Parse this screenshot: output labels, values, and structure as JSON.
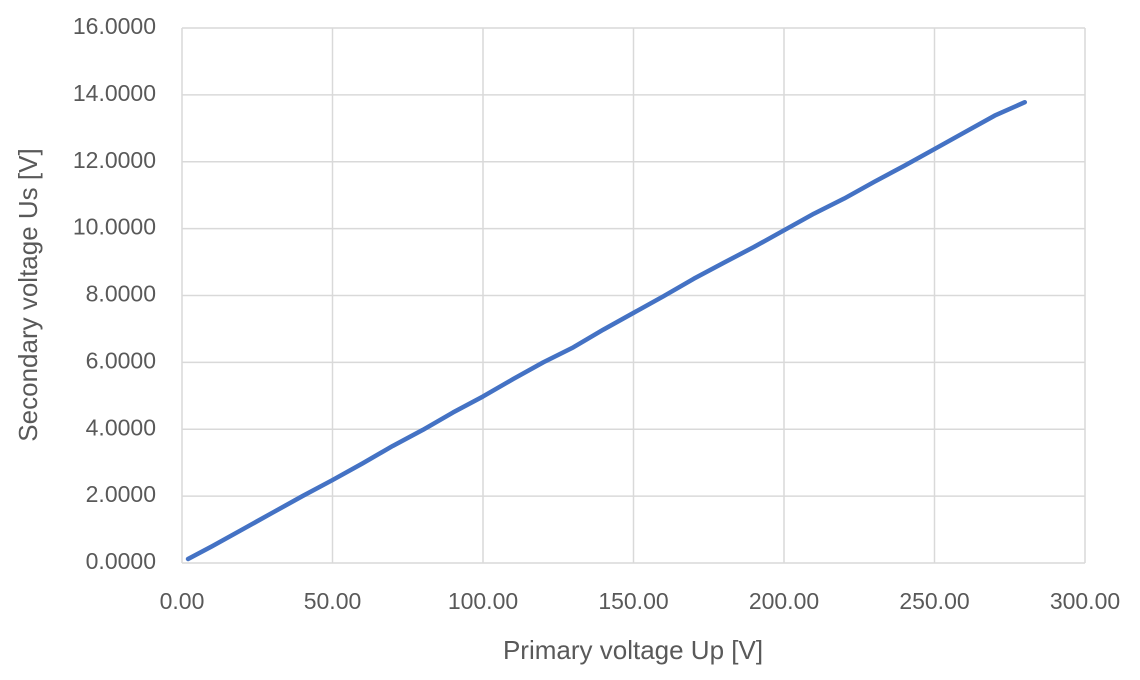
{
  "chart_data": {
    "type": "line",
    "x_label": "Primary voltage Up [V]",
    "y_label": "Secondary voltage Us [V]",
    "x": [
      2,
      10,
      20,
      30,
      40,
      50,
      60,
      70,
      80,
      90,
      100,
      110,
      120,
      130,
      140,
      150,
      160,
      170,
      180,
      190,
      200,
      210,
      220,
      230,
      240,
      250,
      260,
      270,
      280
    ],
    "series": [
      {
        "name": "Us",
        "color": "#4472c4",
        "values": [
          0.12,
          0.5,
          1.0,
          1.5,
          2.0,
          2.48,
          2.98,
          3.5,
          3.98,
          4.5,
          4.98,
          5.5,
          6.0,
          6.45,
          6.98,
          7.48,
          7.98,
          8.5,
          8.98,
          9.45,
          9.95,
          10.45,
          10.9,
          11.4,
          11.88,
          12.38,
          12.88,
          13.38,
          13.78
        ]
      }
    ],
    "xlim": [
      0,
      300
    ],
    "xticks": [
      {
        "value": 0,
        "label": "0.00"
      },
      {
        "value": 50,
        "label": "50.00"
      },
      {
        "value": 100,
        "label": "100.00"
      },
      {
        "value": 150,
        "label": "150.00"
      },
      {
        "value": 200,
        "label": "200.00"
      },
      {
        "value": 250,
        "label": "250.00"
      },
      {
        "value": 300,
        "label": "300.00"
      }
    ],
    "ylim": [
      0,
      16
    ],
    "yticks": [
      {
        "value": 0,
        "label": "0.0000"
      },
      {
        "value": 2,
        "label": "2.0000"
      },
      {
        "value": 4,
        "label": "4.0000"
      },
      {
        "value": 6,
        "label": "6.0000"
      },
      {
        "value": 8,
        "label": "8.0000"
      },
      {
        "value": 10,
        "label": "10.0000"
      },
      {
        "value": 12,
        "label": "12.0000"
      },
      {
        "value": 14,
        "label": "14.0000"
      },
      {
        "value": 16,
        "label": "16.0000"
      }
    ],
    "grid": true
  }
}
